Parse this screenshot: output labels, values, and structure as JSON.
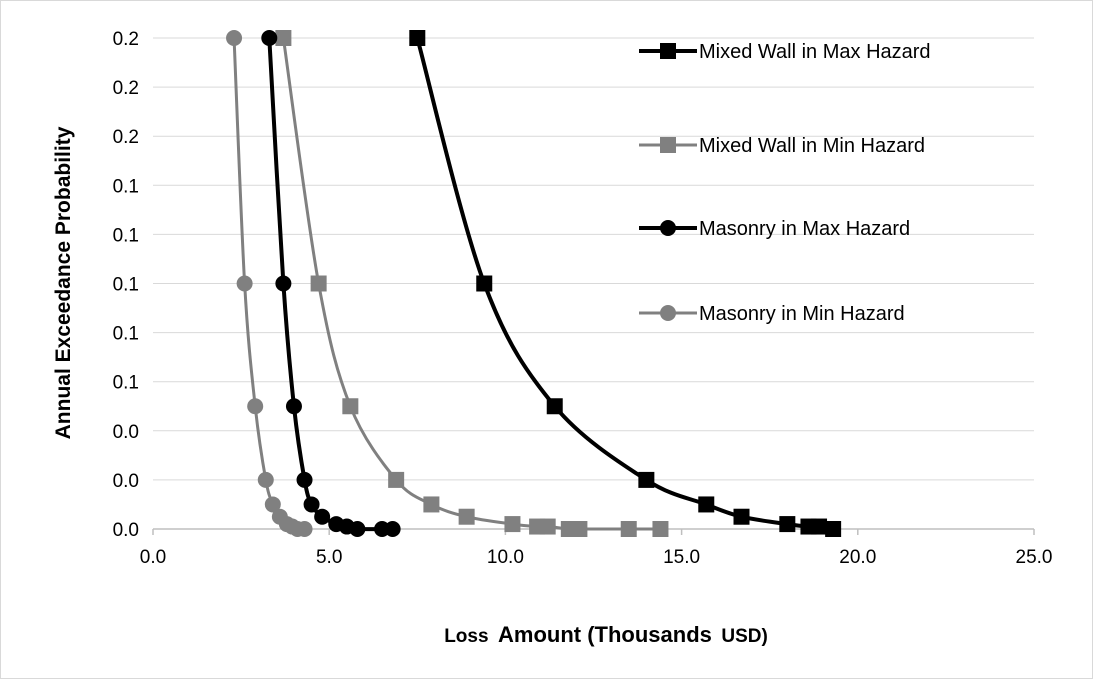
{
  "chart_data": {
    "type": "line",
    "xlabel": "Loss Amount (Thousands USD)",
    "xlabel_small_prefix": "Loss",
    "xlabel_main": "Amount (Thousands",
    "xlabel_small_suffix": "USD)",
    "ylabel": "Annual Exceedance  Probability",
    "xlim": [
      0,
      25
    ],
    "ylim": [
      0,
      0.2
    ],
    "x_ticks": [
      0,
      5,
      10,
      15,
      20,
      25
    ],
    "x_tick_labels": [
      "0.0",
      "5.0",
      "10.0",
      "15.0",
      "20.0",
      "25.0"
    ],
    "y_ticks": [
      0,
      0.02,
      0.04,
      0.06,
      0.08,
      0.1,
      0.12,
      0.14,
      0.16,
      0.18,
      0.2
    ],
    "y_tick_labels": [
      "0.0",
      "0.0",
      "0.0",
      "0.1",
      "0.1",
      "0.1",
      "0.1",
      "0.1",
      "0.2",
      "0.2",
      "0.2"
    ],
    "grid": "horizontal",
    "legend_position": "right",
    "series": [
      {
        "name": "Mixed Wall in Max Hazard",
        "color": "#000000",
        "marker": "square",
        "points": [
          [
            7.5,
            0.2
          ],
          [
            9.4,
            0.1
          ],
          [
            11.4,
            0.05
          ],
          [
            14.0,
            0.02
          ],
          [
            15.7,
            0.01
          ],
          [
            16.7,
            0.005
          ],
          [
            18.0,
            0.002
          ],
          [
            18.6,
            0.001
          ],
          [
            18.9,
            0.001
          ],
          [
            19.3,
            0.0
          ]
        ]
      },
      {
        "name": "Mixed Wall in Min Hazard",
        "color": "#808080",
        "marker": "square",
        "points": [
          [
            3.7,
            0.2
          ],
          [
            4.7,
            0.1
          ],
          [
            5.6,
            0.05
          ],
          [
            6.9,
            0.02
          ],
          [
            7.9,
            0.01
          ],
          [
            8.9,
            0.005
          ],
          [
            10.2,
            0.002
          ],
          [
            10.9,
            0.001
          ],
          [
            11.2,
            0.001
          ],
          [
            11.8,
            0.0
          ],
          [
            12.1,
            0.0
          ],
          [
            13.5,
            0.0
          ],
          [
            14.4,
            0.0
          ]
        ]
      },
      {
        "name": "Masonry in Max Hazard",
        "color": "#000000",
        "marker": "circle",
        "points": [
          [
            3.3,
            0.2
          ],
          [
            3.7,
            0.1
          ],
          [
            4.0,
            0.05
          ],
          [
            4.3,
            0.02
          ],
          [
            4.5,
            0.01
          ],
          [
            4.8,
            0.005
          ],
          [
            5.2,
            0.002
          ],
          [
            5.5,
            0.001
          ],
          [
            5.8,
            0.0
          ],
          [
            6.5,
            0.0
          ],
          [
            6.8,
            0.0
          ]
        ]
      },
      {
        "name": "Masonry in Min Hazard",
        "color": "#808080",
        "marker": "circle",
        "points": [
          [
            2.3,
            0.2
          ],
          [
            2.6,
            0.1
          ],
          [
            2.9,
            0.05
          ],
          [
            3.2,
            0.02
          ],
          [
            3.4,
            0.01
          ],
          [
            3.6,
            0.005
          ],
          [
            3.8,
            0.002
          ],
          [
            3.95,
            0.001
          ],
          [
            4.1,
            0.0
          ],
          [
            4.3,
            0.0
          ]
        ]
      }
    ]
  }
}
